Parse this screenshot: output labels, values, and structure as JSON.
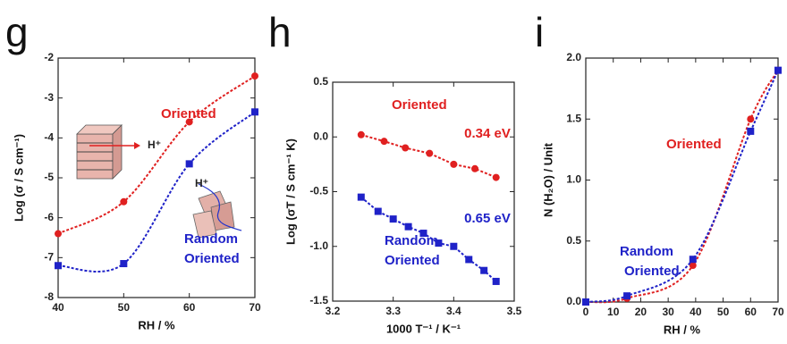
{
  "chart_data": [
    {
      "type": "line",
      "panel": "g",
      "smooth": true,
      "xlabel": "RH / %",
      "ylabel": "Log  (σ / S cm⁻¹)",
      "xlim": [
        40,
        70
      ],
      "xticks": [
        40,
        50,
        60,
        70
      ],
      "ylim": [
        -8,
        -2
      ],
      "yticks": [
        -8,
        -7,
        -6,
        -5,
        -4,
        -3,
        -2
      ],
      "series": [
        {
          "label": [
            "Oriented"
          ],
          "color": "#e02020",
          "marker": "circle",
          "x": [
            40,
            50,
            60,
            70
          ],
          "values": [
            -6.4,
            -5.6,
            -3.6,
            -2.45
          ]
        },
        {
          "label": [
            "Random",
            "Oriented"
          ],
          "color": "#1f22c8",
          "marker": "square",
          "x": [
            40,
            50,
            60,
            70
          ],
          "values": [
            -7.2,
            -7.15,
            -4.65,
            -3.35
          ]
        }
      ],
      "annotations": [
        "H⁺",
        "H⁺"
      ]
    },
    {
      "type": "line",
      "panel": "h",
      "smooth": false,
      "xlabel": "1000 T⁻¹ / K⁻¹",
      "ylabel": "Log (σT / S cm⁻¹ K)",
      "xlim": [
        3.2,
        3.5
      ],
      "xticks": [
        3.2,
        3.3,
        3.4,
        3.5
      ],
      "ylim": [
        -1.5,
        0.5
      ],
      "yticks": [
        -1.5,
        {
          "value": -1.0,
          "label": "-1.0"
        },
        -0.5,
        {
          "value": 0.0,
          "label": "0.0"
        },
        0.5
      ],
      "series": [
        {
          "label": [
            "Oriented"
          ],
          "color": "#e02020",
          "marker": "circle",
          "x": [
            3.247,
            3.285,
            3.32,
            3.36,
            3.4,
            3.435,
            3.47
          ],
          "values": [
            0.02,
            -0.04,
            -0.1,
            -0.15,
            -0.25,
            -0.29,
            -0.37
          ]
        },
        {
          "label": [
            "Random",
            "Oriented"
          ],
          "color": "#1f22c8",
          "marker": "square",
          "x": [
            3.247,
            3.275,
            3.3,
            3.325,
            3.35,
            3.375,
            3.4,
            3.425,
            3.45,
            3.47
          ],
          "values": [
            -0.55,
            -0.68,
            -0.75,
            -0.82,
            -0.88,
            -0.97,
            -1.0,
            -1.12,
            -1.22,
            -1.32
          ]
        }
      ],
      "annotations": [
        "0.34 eV",
        "0.65 eV"
      ]
    },
    {
      "type": "line",
      "panel": "i",
      "smooth": true,
      "xlabel": "RH / %",
      "ylabel": "N (H₂O) / Unit",
      "xlim": [
        0,
        70
      ],
      "xticks": [
        0,
        10,
        20,
        30,
        40,
        50,
        60,
        70
      ],
      "ylim": [
        0,
        2
      ],
      "yticks": [
        {
          "value": 0,
          "label": "0.0"
        },
        0.5,
        {
          "value": 1,
          "label": "1.0"
        },
        1.5,
        {
          "value": 2,
          "label": "2.0"
        }
      ],
      "series": [
        {
          "label": [
            "Oriented"
          ],
          "color": "#e02020",
          "marker": "circle",
          "x": [
            0,
            15,
            39,
            60,
            70
          ],
          "values": [
            0,
            0.03,
            0.3,
            1.5,
            1.9
          ]
        },
        {
          "label": [
            "Random",
            "Oriented"
          ],
          "color": "#1f22c8",
          "marker": "square",
          "x": [
            0,
            15,
            39,
            60,
            70
          ],
          "values": [
            0,
            0.05,
            0.35,
            1.4,
            1.9
          ]
        }
      ],
      "annotations": []
    }
  ]
}
